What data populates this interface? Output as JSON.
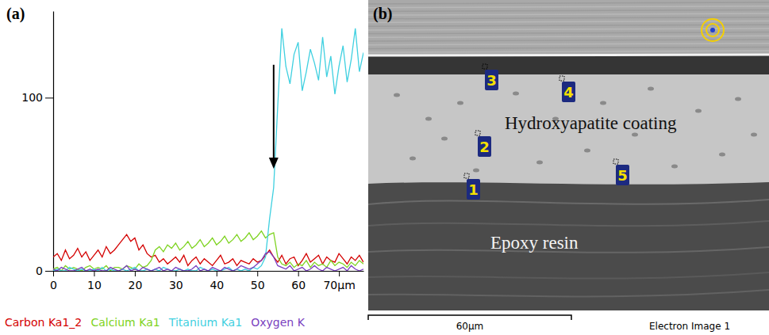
{
  "chart_data": {
    "type": "line",
    "panel_label": "(a)",
    "x": [
      0,
      1,
      2,
      3,
      4,
      5,
      6,
      7,
      8,
      9,
      10,
      11,
      12,
      13,
      14,
      15,
      16,
      17,
      18,
      19,
      20,
      21,
      22,
      23,
      24,
      25,
      26,
      27,
      28,
      29,
      30,
      31,
      32,
      33,
      34,
      35,
      36,
      37,
      38,
      39,
      40,
      41,
      42,
      43,
      44,
      45,
      46,
      47,
      48,
      49,
      50,
      51,
      52,
      53,
      54,
      55,
      56,
      57,
      58,
      59,
      60,
      61,
      62,
      63,
      64,
      65,
      66,
      67,
      68,
      69,
      70,
      71,
      72,
      73,
      74,
      75,
      76
    ],
    "series": [
      {
        "name": "Carbon Ka1_2",
        "color": "#d40000",
        "values": [
          8,
          10,
          6,
          12,
          7,
          9,
          13,
          8,
          11,
          6,
          9,
          12,
          8,
          14,
          10,
          12,
          15,
          18,
          21,
          17,
          19,
          12,
          15,
          10,
          8,
          9,
          5,
          7,
          4,
          6,
          8,
          5,
          9,
          3,
          6,
          8,
          4,
          7,
          5,
          3,
          6,
          9,
          4,
          5,
          7,
          3,
          6,
          5,
          4,
          7,
          5,
          6,
          9,
          12,
          8,
          5,
          9,
          4,
          7,
          8,
          3,
          6,
          10,
          5,
          7,
          9,
          4,
          8,
          6,
          5,
          10,
          7,
          4,
          8,
          6,
          9,
          5
        ]
      },
      {
        "name": "Calcium Ka1",
        "color": "#7ed321",
        "values": [
          1,
          2,
          0,
          3,
          1,
          2,
          1,
          0,
          2,
          3,
          1,
          2,
          1,
          3,
          0,
          2,
          2,
          1,
          3,
          2,
          1,
          4,
          2,
          3,
          6,
          12,
          14,
          11,
          15,
          13,
          16,
          12,
          14,
          17,
          13,
          15,
          18,
          14,
          16,
          19,
          15,
          17,
          20,
          16,
          18,
          21,
          17,
          19,
          22,
          18,
          20,
          23,
          19,
          21,
          22,
          8,
          4,
          3,
          5,
          2,
          4,
          3,
          6,
          2,
          5,
          3,
          4,
          2,
          6,
          3,
          5,
          4,
          2,
          5,
          3,
          6,
          4
        ]
      },
      {
        "name": "Titanium Ka1",
        "color": "#3fd0e0",
        "values": [
          0,
          1,
          0,
          0,
          2,
          1,
          0,
          1,
          0,
          0,
          1,
          0,
          2,
          0,
          1,
          0,
          0,
          1,
          0,
          1,
          2,
          0,
          0,
          1,
          0,
          1,
          0,
          2,
          1,
          0,
          0,
          1,
          0,
          1,
          0,
          0,
          2,
          1,
          0,
          1,
          0,
          0,
          1,
          2,
          0,
          1,
          0,
          1,
          0,
          2,
          1,
          3,
          8,
          30,
          48,
          95,
          140,
          118,
          108,
          125,
          132,
          104,
          115,
          128,
          120,
          110,
          135,
          112,
          124,
          102,
          118,
          130,
          109,
          122,
          140,
          115,
          126
        ]
      },
      {
        "name": "Oxygen K",
        "color": "#7a3fc0",
        "values": [
          1,
          0,
          2,
          1,
          0,
          0,
          1,
          2,
          0,
          1,
          0,
          1,
          0,
          0,
          2,
          1,
          0,
          1,
          3,
          0,
          1,
          0,
          2,
          1,
          0,
          1,
          2,
          0,
          1,
          0,
          2,
          1,
          0,
          0,
          1,
          3,
          0,
          1,
          0,
          2,
          1,
          0,
          2,
          1,
          0,
          1,
          3,
          2,
          1,
          2,
          4,
          6,
          10,
          11,
          8,
          3,
          2,
          1,
          3,
          0,
          1,
          2,
          0,
          1,
          3,
          1,
          0,
          2,
          1,
          0,
          1,
          2,
          0,
          3,
          1,
          0,
          1
        ]
      }
    ],
    "xlim": [
      0,
      76
    ],
    "xticks": [
      0,
      10,
      20,
      30,
      40,
      50,
      60,
      {
        "value": 70,
        "label": "70µm"
      }
    ],
    "ylim": [
      0,
      150
    ],
    "yticks": [
      0,
      100
    ],
    "legend": "bottom",
    "annotations": [
      {
        "x": 54,
        "y_start": 119,
        "y_end": 59
      }
    ]
  },
  "micrograph": {
    "panel_label": "(b)",
    "regions": [
      "Hydroxyapatite coating",
      "Epoxy resin"
    ],
    "points": [
      "1",
      "2",
      "3",
      "4",
      "5"
    ],
    "scale_bar": "60µm",
    "caption": "Electron Image 1"
  }
}
